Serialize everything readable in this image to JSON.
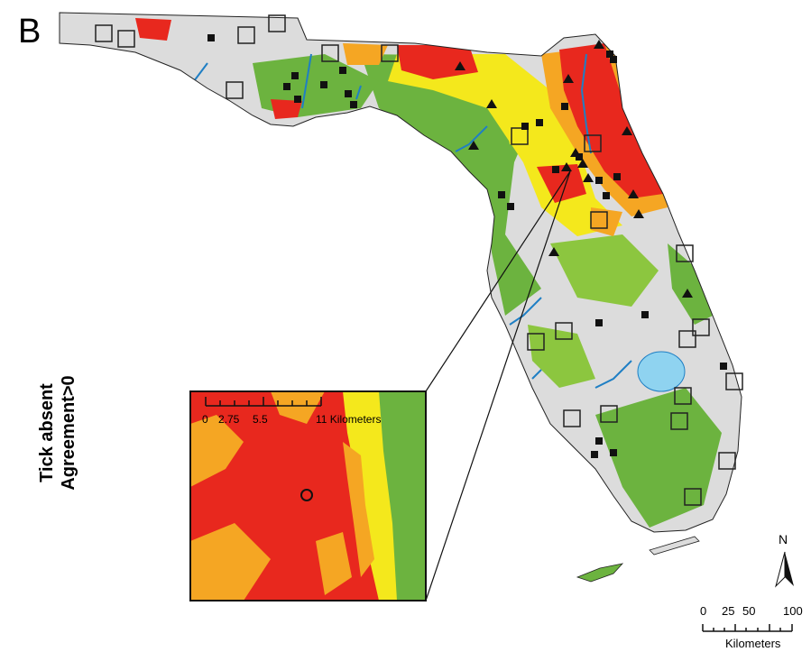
{
  "figure": {
    "panel_letter": "B",
    "side_label_line1": "Tick absent",
    "side_label_line2": "Agreement>0"
  },
  "inset": {
    "scale_labels": [
      "0",
      "2.75",
      "5.5",
      "11 Kilometers"
    ]
  },
  "scalebar": {
    "labels": [
      "0",
      "25",
      "50",
      "100"
    ],
    "unit": "Kilometers"
  },
  "north_arrow": {
    "label": "N"
  },
  "colors": {
    "high_agreement": "#e8281e",
    "mid_agreement": "#f5a623",
    "low_agreement": "#f4e81c",
    "green": "#6cb33f",
    "dark_green": "#3f9e3a",
    "absent": "#dcdcdc",
    "water": "#1f7fc4",
    "lake": "#8fd3f0"
  },
  "legend_markers": {
    "square_open": "open-square-icon",
    "square_filled": "filled-square-icon",
    "triangle_filled": "filled-triangle-icon"
  }
}
